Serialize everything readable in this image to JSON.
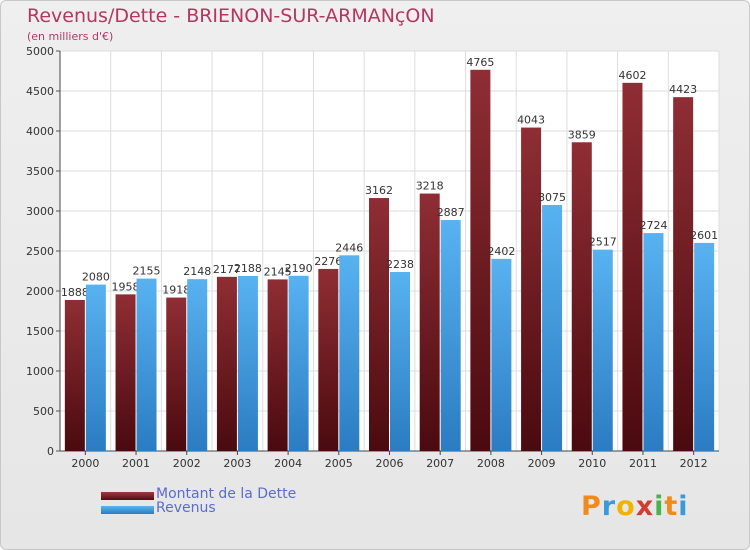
{
  "title": "Revenus/Dette - BRIENON-SUR-ARMANçON",
  "subtitle": "(en milliers d'€)",
  "brand": {
    "text": "Proxiti",
    "letter_colors": [
      "#f08a1c",
      "#3a9ad8",
      "#f0b400",
      "#d23c32",
      "#4ab24a",
      "#f08a1c",
      "#3a9ad8"
    ]
  },
  "chart_data": {
    "type": "bar",
    "categories": [
      "2000",
      "2001",
      "2002",
      "2003",
      "2004",
      "2005",
      "2006",
      "2007",
      "2008",
      "2009",
      "2010",
      "2011",
      "2012"
    ],
    "series": [
      {
        "name": "Montant de la Dette",
        "color": "#7a1f26",
        "values": [
          1888,
          1958,
          1918,
          2177,
          2145,
          2276,
          3162,
          3218,
          4765,
          4043,
          3859,
          4602,
          4423
        ]
      },
      {
        "name": "Revenus",
        "color": "#3f9be0",
        "values": [
          2080,
          2155,
          2148,
          2188,
          2190,
          2446,
          2238,
          2887,
          2402,
          3075,
          2517,
          2724,
          2601
        ]
      }
    ],
    "ylim": [
      0,
      5000
    ],
    "yticks": [
      0,
      500,
      1000,
      1500,
      2000,
      2500,
      3000,
      3500,
      4000,
      4500,
      5000
    ],
    "grid": true,
    "legend_position": "bottom-left"
  }
}
